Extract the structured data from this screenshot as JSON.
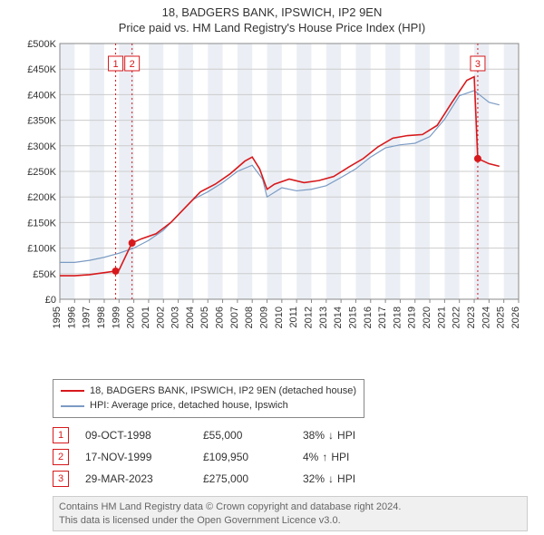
{
  "title_line1": "18, BADGERS BANK, IPSWICH, IP2 9EN",
  "title_line2": "Price paid vs. HM Land Registry's House Price Index (HPI)",
  "chart": {
    "type": "line",
    "background_color": "#ffffff",
    "plot_border_color": "#888888",
    "alt_band_color": "#ebeff5",
    "grid_color": "#cccccc",
    "marker_box_border": "#d7191c",
    "marker_box_text": "#d7191c",
    "marker_vline_color": "#d7191c",
    "point_fill": "#d7191c",
    "x": {
      "min": 1995,
      "max": 2026,
      "ticks": [
        1995,
        1996,
        1997,
        1998,
        1999,
        2000,
        2001,
        2002,
        2003,
        2004,
        2005,
        2006,
        2007,
        2008,
        2009,
        2010,
        2011,
        2012,
        2013,
        2014,
        2015,
        2016,
        2017,
        2018,
        2019,
        2020,
        2021,
        2022,
        2023,
        2024,
        2025,
        2026
      ],
      "tick_rotation_deg": -90,
      "tick_fontsize": 11
    },
    "y": {
      "min": 0,
      "max": 500000,
      "ticks": [
        0,
        50000,
        100000,
        150000,
        200000,
        250000,
        300000,
        350000,
        400000,
        450000,
        500000
      ],
      "tick_labels": [
        "£0",
        "£50K",
        "£100K",
        "£150K",
        "£200K",
        "£250K",
        "£300K",
        "£350K",
        "£400K",
        "£450K",
        "£500K"
      ],
      "tick_fontsize": 11
    },
    "series": [
      {
        "name": "18, BADGERS BANK, IPSWICH, IP2 9EN (detached house)",
        "color": "#d7191c",
        "line_width": 1.6,
        "data": [
          [
            1995.0,
            46000
          ],
          [
            1996.0,
            46000
          ],
          [
            1997.0,
            48000
          ],
          [
            1998.0,
            52000
          ],
          [
            1998.77,
            55000
          ],
          [
            1998.78,
            55000
          ],
          [
            1999.0,
            57000
          ],
          [
            1999.87,
            109950
          ],
          [
            1999.88,
            109950
          ],
          [
            2000.5,
            118000
          ],
          [
            2001.5,
            128000
          ],
          [
            2002.5,
            150000
          ],
          [
            2003.5,
            180000
          ],
          [
            2004.5,
            210000
          ],
          [
            2005.5,
            225000
          ],
          [
            2006.5,
            245000
          ],
          [
            2007.5,
            270000
          ],
          [
            2008.0,
            278000
          ],
          [
            2008.5,
            255000
          ],
          [
            2009.0,
            215000
          ],
          [
            2009.5,
            225000
          ],
          [
            2010.5,
            235000
          ],
          [
            2011.5,
            228000
          ],
          [
            2012.5,
            232000
          ],
          [
            2013.5,
            240000
          ],
          [
            2014.5,
            258000
          ],
          [
            2015.5,
            275000
          ],
          [
            2016.5,
            298000
          ],
          [
            2017.5,
            315000
          ],
          [
            2018.5,
            320000
          ],
          [
            2019.5,
            322000
          ],
          [
            2020.5,
            340000
          ],
          [
            2021.5,
            385000
          ],
          [
            2022.5,
            428000
          ],
          [
            2023.0,
            435000
          ],
          [
            2023.24,
            275000
          ],
          [
            2023.25,
            275000
          ],
          [
            2024.0,
            265000
          ],
          [
            2024.7,
            260000
          ]
        ]
      },
      {
        "name": "HPI: Average price, detached house, Ipswich",
        "color": "#7b9bc4",
        "line_width": 1.2,
        "data": [
          [
            1995.0,
            72000
          ],
          [
            1996.0,
            72000
          ],
          [
            1997.0,
            76000
          ],
          [
            1998.0,
            82000
          ],
          [
            1999.0,
            90000
          ],
          [
            2000.0,
            100000
          ],
          [
            2001.0,
            115000
          ],
          [
            2002.0,
            135000
          ],
          [
            2003.0,
            165000
          ],
          [
            2004.0,
            195000
          ],
          [
            2005.0,
            210000
          ],
          [
            2006.0,
            228000
          ],
          [
            2007.0,
            250000
          ],
          [
            2008.0,
            262000
          ],
          [
            2008.7,
            235000
          ],
          [
            2009.0,
            200000
          ],
          [
            2010.0,
            218000
          ],
          [
            2011.0,
            212000
          ],
          [
            2012.0,
            215000
          ],
          [
            2013.0,
            222000
          ],
          [
            2014.0,
            238000
          ],
          [
            2015.0,
            255000
          ],
          [
            2016.0,
            278000
          ],
          [
            2017.0,
            296000
          ],
          [
            2018.0,
            302000
          ],
          [
            2019.0,
            305000
          ],
          [
            2020.0,
            318000
          ],
          [
            2021.0,
            352000
          ],
          [
            2022.0,
            398000
          ],
          [
            2023.0,
            408000
          ],
          [
            2024.0,
            385000
          ],
          [
            2024.7,
            380000
          ]
        ]
      }
    ],
    "event_markers": [
      {
        "label": "1",
        "x": 1998.77,
        "y": 55000
      },
      {
        "label": "2",
        "x": 1999.88,
        "y": 109950
      },
      {
        "label": "3",
        "x": 2023.24,
        "y": 275000
      }
    ]
  },
  "legend": {
    "items": [
      {
        "color": "#d7191c",
        "label": "18, BADGERS BANK, IPSWICH, IP2 9EN (detached house)"
      },
      {
        "color": "#7b9bc4",
        "label": "HPI: Average price, detached house, Ipswich"
      }
    ]
  },
  "events_table": [
    {
      "marker": "1",
      "date": "09-OCT-1998",
      "price": "£55,000",
      "delta_pct": "38%",
      "delta_dir": "down",
      "delta_suffix": "HPI"
    },
    {
      "marker": "2",
      "date": "17-NOV-1999",
      "price": "£109,950",
      "delta_pct": "4%",
      "delta_dir": "up",
      "delta_suffix": "HPI"
    },
    {
      "marker": "3",
      "date": "29-MAR-2023",
      "price": "£275,000",
      "delta_pct": "32%",
      "delta_dir": "down",
      "delta_suffix": "HPI"
    }
  ],
  "attribution_line1": "Contains HM Land Registry data © Crown copyright and database right 2024.",
  "attribution_line2": "This data is licensed under the Open Government Licence v3.0."
}
